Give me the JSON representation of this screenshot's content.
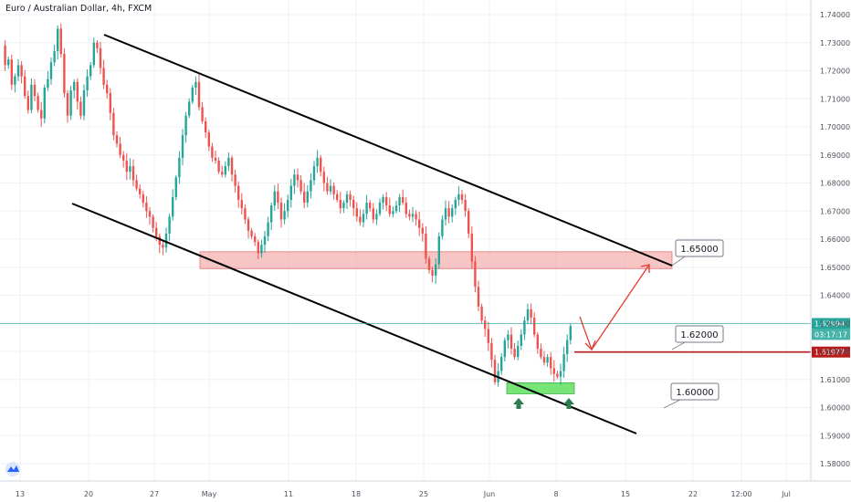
{
  "header": {
    "symbol_title": "Euro / Australian Dollar, 4h, FXCM"
  },
  "colors": {
    "up": "#26a69a",
    "down": "#ef5350",
    "zone_red": "#f28b8b",
    "zone_green": "#5ee05e",
    "arrow": "#e53935",
    "grid": "#eef0f4"
  },
  "chart_data": {
    "type": "candlestick",
    "timeframe": "4h",
    "ylim": [
      1.575,
      1.745
    ],
    "y_ticks": [
      "1.74000",
      "1.73000",
      "1.72000",
      "1.71000",
      "1.70000",
      "1.69000",
      "1.68000",
      "1.67000",
      "1.66000",
      "1.65000",
      "1.64000",
      "1.63000",
      "1.62000",
      "1.61000",
      "1.60000",
      "1.59000",
      "1.58000"
    ],
    "x_ticks": [
      "13",
      "20",
      "27",
      "May",
      "11",
      "18",
      "25",
      "Jun",
      "8",
      "15",
      "22",
      "12:00",
      "Jul"
    ],
    "current_price": {
      "value": "1.62994",
      "countdown": "03:17:17"
    },
    "red_line_price": {
      "value": "1.61977"
    },
    "annotations": [
      "1.65000",
      "1.62000",
      "1.60000"
    ],
    "price_path": [
      1.729,
      1.722,
      1.724,
      1.715,
      1.718,
      1.722,
      1.718,
      1.711,
      1.706,
      1.715,
      1.711,
      1.706,
      1.703,
      1.714,
      1.717,
      1.723,
      1.727,
      1.735,
      1.726,
      1.712,
      1.704,
      1.713,
      1.716,
      1.709,
      1.704,
      1.713,
      1.718,
      1.722,
      1.73,
      1.728,
      1.721,
      1.715,
      1.712,
      1.705,
      1.697,
      1.694,
      1.69,
      1.688,
      1.684,
      1.686,
      1.681,
      1.678,
      1.676,
      1.673,
      1.67,
      1.668,
      1.664,
      1.661,
      1.658,
      1.657,
      1.662,
      1.668,
      1.675,
      1.682,
      1.689,
      1.697,
      1.704,
      1.709,
      1.714,
      1.716,
      1.707,
      1.702,
      1.698,
      1.693,
      1.689,
      1.688,
      1.684,
      1.683,
      1.686,
      1.689,
      1.683,
      1.679,
      1.674,
      1.671,
      1.667,
      1.663,
      1.661,
      1.659,
      1.655,
      1.658,
      1.661,
      1.666,
      1.672,
      1.677,
      1.673,
      1.667,
      1.67,
      1.674,
      1.679,
      1.683,
      1.681,
      1.677,
      1.673,
      1.677,
      1.681,
      1.686,
      1.689,
      1.684,
      1.68,
      1.677,
      1.679,
      1.676,
      1.674,
      1.671,
      1.673,
      1.676,
      1.674,
      1.671,
      1.668,
      1.666,
      1.669,
      1.673,
      1.671,
      1.667,
      1.669,
      1.673,
      1.675,
      1.672,
      1.669,
      1.67,
      1.672,
      1.675,
      1.673,
      1.669,
      1.668,
      1.669,
      1.667,
      1.664,
      1.662,
      1.653,
      1.649,
      1.647,
      1.651,
      1.661,
      1.667,
      1.671,
      1.668,
      1.671,
      1.674,
      1.676,
      1.674,
      1.67,
      1.662,
      1.652,
      1.643,
      1.636,
      1.631,
      1.628,
      1.623,
      1.617,
      1.609,
      1.613,
      1.618,
      1.624,
      1.626,
      1.621,
      1.618,
      1.622,
      1.626,
      1.631,
      1.635,
      1.632,
      1.626,
      1.621,
      1.618,
      1.616,
      1.618,
      1.614,
      1.612,
      1.611,
      1.613,
      1.619,
      1.624,
      1.629
    ]
  }
}
